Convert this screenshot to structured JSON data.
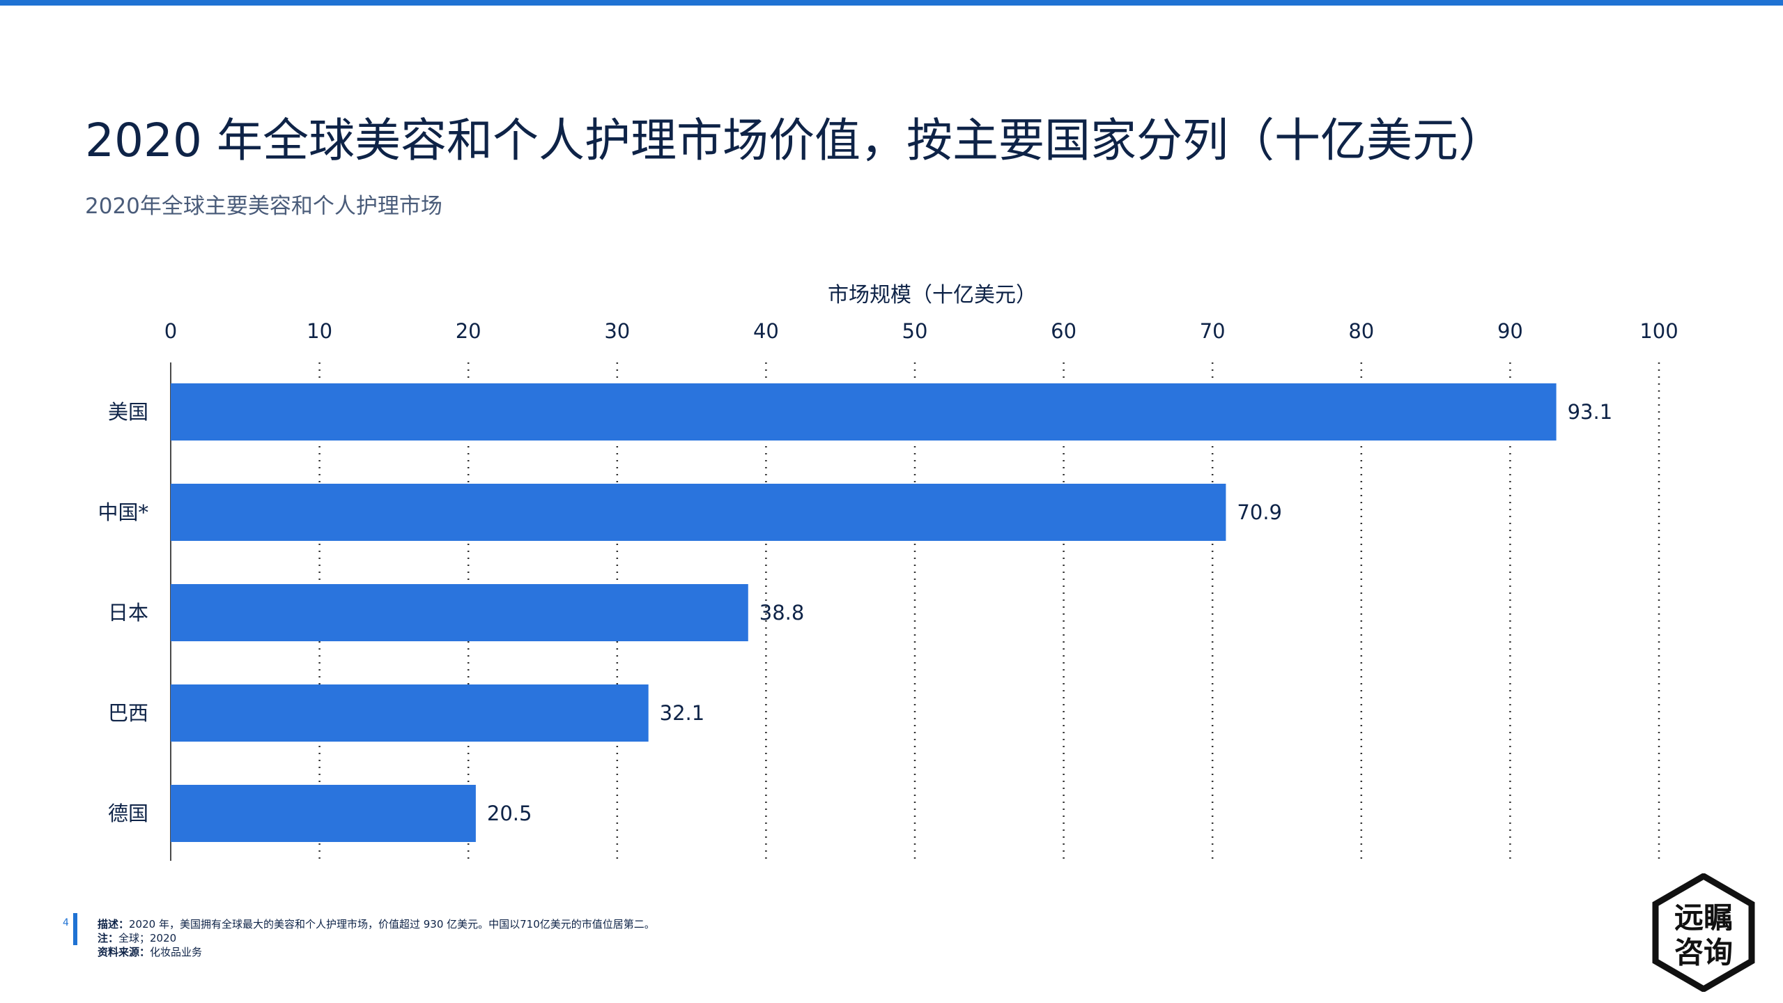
{
  "page": {
    "title": "2020 年全球美容和个人护理市场价值，按主要国家分列（十亿美元）",
    "subtitle": "2020年全球主要美容和个人护理市场",
    "page_number": "4"
  },
  "colors": {
    "accent": "#1f72d3",
    "bar": "#2a74dd",
    "text": "#0e2347"
  },
  "chart_data": {
    "type": "bar",
    "orientation": "horizontal",
    "xlabel": "市场规模（十亿美元）",
    "ylabel": "",
    "categories": [
      "美国",
      "中国*",
      "日本",
      "巴西",
      "德国"
    ],
    "values": [
      93.1,
      70.9,
      38.8,
      32.1,
      20.5
    ],
    "value_labels": [
      "93.1",
      "70.9",
      "38.8",
      "32.1",
      "20.5"
    ],
    "xlim": [
      0,
      100
    ],
    "ticks": [
      "0",
      "10",
      "20",
      "30",
      "40",
      "50",
      "60",
      "70",
      "80",
      "90",
      "100"
    ],
    "tick_values": [
      0,
      10,
      20,
      30,
      40,
      50,
      60,
      70,
      80,
      90,
      100
    ],
    "grid": "vertical dotted",
    "axis_position": "top",
    "legend": "none"
  },
  "footer": {
    "description_label": "描述：",
    "description_text": "2020 年，美国拥有全球最大的美容和个人护理市场，价值超过 930 亿美元。中国以710亿美元的市值位居第二。",
    "note_label": "注：",
    "note_text": "全球；2020",
    "source_label": "资料来源：",
    "source_text": "化妆品业务"
  },
  "logo": {
    "line1": "远瞩",
    "line2": "咨询"
  }
}
